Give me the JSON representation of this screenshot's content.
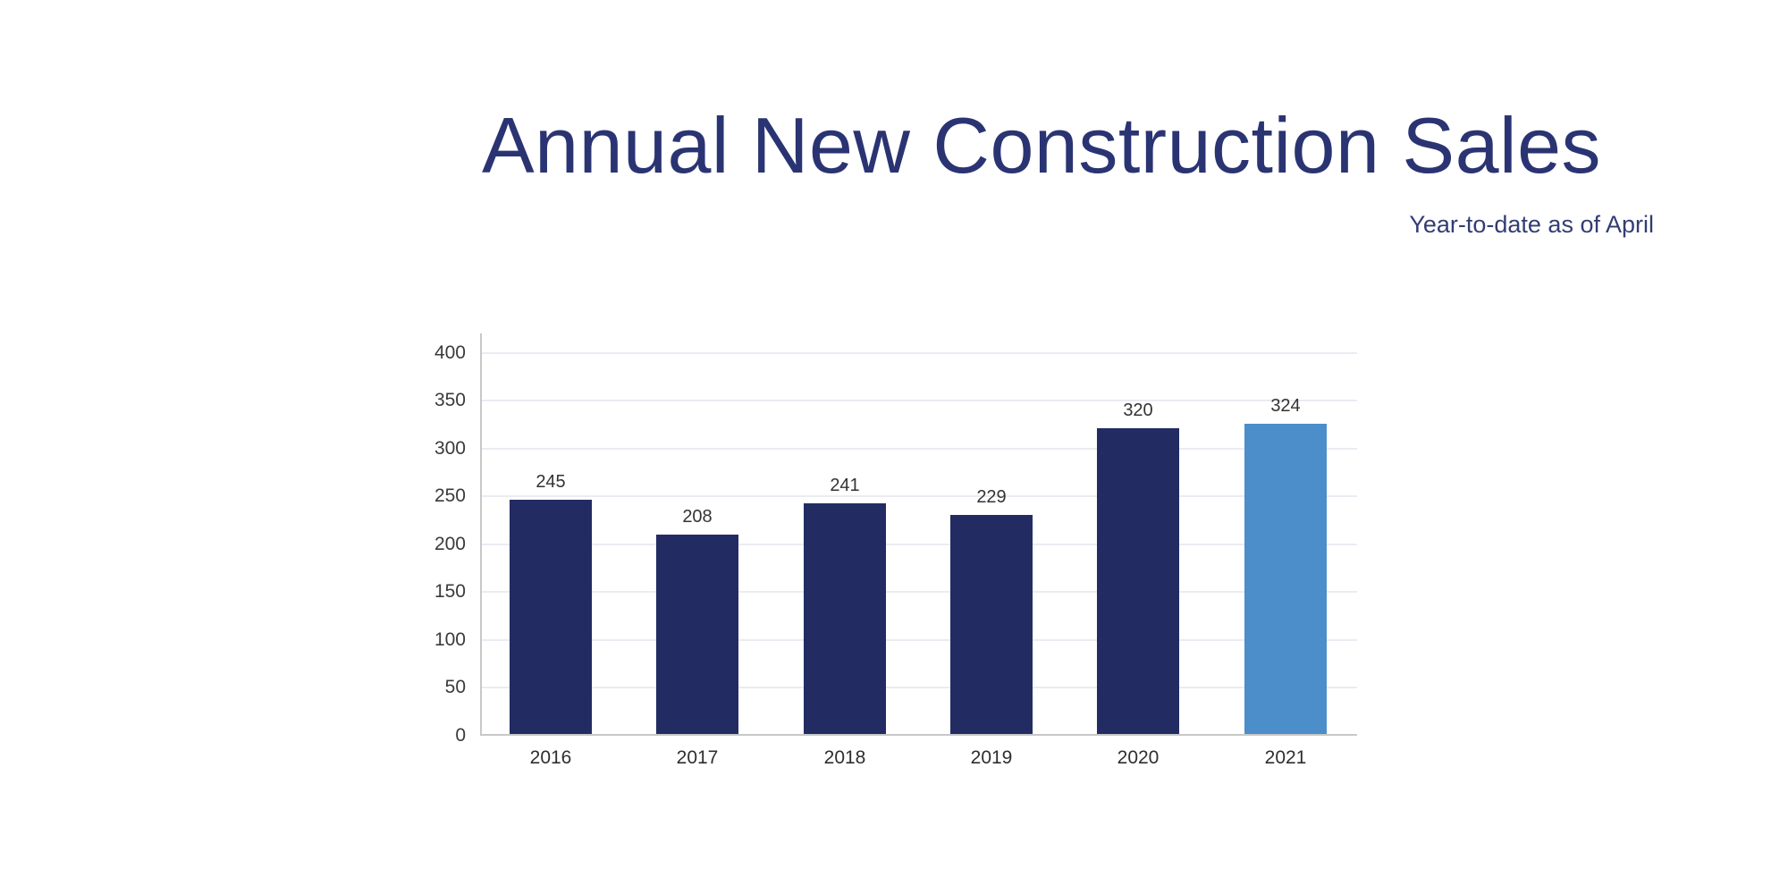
{
  "header": {
    "title": "Annual New Construction Sales",
    "subtitle": "Year-to-date as of April"
  },
  "chart_data": {
    "type": "bar",
    "title": "Annual New Construction Sales",
    "subtitle": "Year-to-date as of April",
    "categories": [
      "2016",
      "2017",
      "2018",
      "2019",
      "2020",
      "2021"
    ],
    "values": [
      245,
      208,
      241,
      229,
      320,
      324
    ],
    "data_labels": [
      "245",
      "208",
      "241",
      "229",
      "320",
      "324"
    ],
    "bar_colors": [
      "#232c62",
      "#232c62",
      "#232c62",
      "#232c62",
      "#232c62",
      "#4b8eca"
    ],
    "ylim": [
      0,
      400
    ],
    "yticks": [
      0,
      50,
      100,
      150,
      200,
      250,
      300,
      350,
      400
    ],
    "grid": true,
    "legend_position": "none",
    "xlabel": "",
    "ylabel": ""
  },
  "colors": {
    "title_text": "#2b3472",
    "subtitle_text": "#333d73",
    "bar_default": "#232c62",
    "bar_highlight": "#4b8eca",
    "axis_line": "#c8c8c8",
    "gridline": "#eaecf2",
    "tick_label_text": "#3a3a3a",
    "value_label_text": "#333333",
    "category_label_text": "#2e2e2e",
    "background": "#ffffff"
  }
}
